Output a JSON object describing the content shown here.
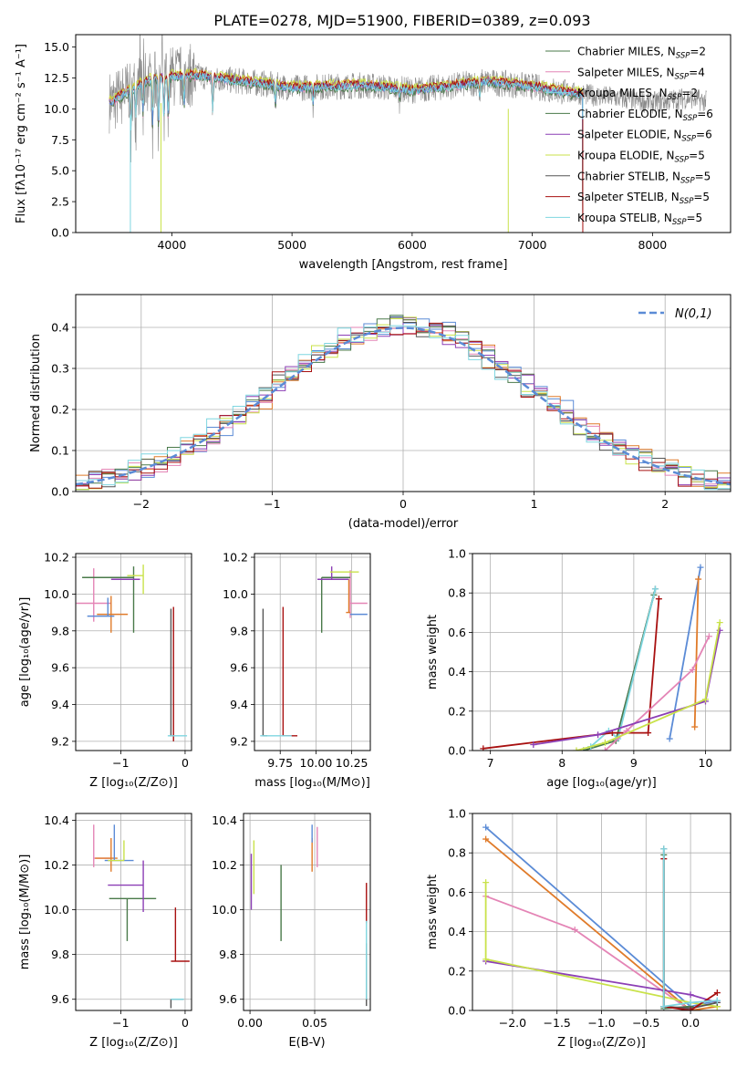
{
  "figure_title": "PLATE=0278, MJD=51900, FIBERID=0389, z=0.093",
  "palette": {
    "blue": "#5b8bd6",
    "orange": "#e07b2a",
    "pink": "#e485b6",
    "darkgreen": "#4a7a4a",
    "purple": "#8c3fb5",
    "yellowgreen": "#c9e24a",
    "darkgray": "#555555",
    "darkred": "#a81010",
    "cyan": "#7fd6e0",
    "spectrum_gray": "#8a8a8a",
    "grid": "#b0b0b0"
  },
  "chart_data": [
    {
      "type": "line",
      "title": "PLATE=0278, MJD=51900, FIBERID=0389, z=0.093",
      "xlabel": "wavelength [Angstrom, rest frame]",
      "ylabel": "Flux [fλ10⁻¹⁷ erg cm⁻² s⁻¹ A⁻¹]",
      "xlim": [
        3200,
        8650
      ],
      "ylim": [
        0,
        16
      ],
      "xticks": [
        "4000",
        "5000",
        "6000",
        "7000",
        "8000"
      ],
      "yticks": [
        "0.0",
        "2.5",
        "5.0",
        "7.5",
        "10.0",
        "12.5",
        "15.0"
      ],
      "grid": false,
      "legend_position": "top-right",
      "legend": [
        {
          "label": "Chabrier MILES, N_SSP=2",
          "color": "darkgreen"
        },
        {
          "label": "Salpeter MILES, N_SSP=4",
          "color": "pink"
        },
        {
          "label": "Kroupa MILES, N_SSP=2",
          "color": "cyan"
        },
        {
          "label": "Chabrier ELODIE, N_SSP=6",
          "color": "darkgreen"
        },
        {
          "label": "Salpeter ELODIE, N_SSP=6",
          "color": "purple"
        },
        {
          "label": "Kroupa ELODIE, N_SSP=5",
          "color": "yellowgreen"
        },
        {
          "label": "Chabrier STELIB, N_SSP=5",
          "color": "darkgray"
        },
        {
          "label": "Salpeter STELIB, N_SSP=5",
          "color": "darkred"
        },
        {
          "label": "Kroupa STELIB, N_SSP=5",
          "color": "cyan"
        }
      ],
      "continuum": {
        "x": [
          3500,
          3600,
          3700,
          3800,
          4000,
          4200,
          4500,
          4800,
          5000,
          5300,
          5600,
          6000,
          6300,
          6600,
          7000,
          7300,
          7600,
          8000,
          8300,
          8450
        ],
        "y": [
          10.5,
          11.2,
          11.8,
          12.3,
          12.6,
          12.7,
          12.3,
          12.0,
          11.7,
          11.8,
          11.9,
          11.5,
          11.8,
          12.2,
          11.8,
          11.3,
          11.0,
          10.5,
          10.9,
          10.6
        ]
      },
      "data_x_range": [
        3480,
        8450
      ],
      "model_x_range": [
        3480,
        7420
      ],
      "stelib_x_range": [
        3500,
        7420
      ]
    },
    {
      "type": "step",
      "xlabel": "(data-model)/error",
      "ylabel": "Normed distribution",
      "xlim": [
        -2.5,
        2.5
      ],
      "ylim": [
        0,
        0.48
      ],
      "xticks": [
        "−2",
        "−1",
        "0",
        "1",
        "2"
      ],
      "yticks": [
        "0.0",
        "0.1",
        "0.2",
        "0.3",
        "0.4"
      ],
      "grid": true,
      "legend_position": "top-right",
      "legend_label": "N(0,1)",
      "reference_curve": "normal(0,1)",
      "bin_width": 0.1,
      "bins_start": -2.5,
      "series_colors": [
        "blue",
        "orange",
        "pink",
        "darkgreen",
        "purple",
        "yellowgreen",
        "darkgray",
        "darkred",
        "cyan"
      ]
    },
    {
      "type": "errorbar",
      "xlabel": "Z [log₁₀(Z/Z⊙)]",
      "ylabel": "age  [log₁₀(age/yr)]",
      "xlim": [
        -1.7,
        0.1
      ],
      "ylim": [
        9.15,
        10.22
      ],
      "xticks": [
        "−1",
        "0"
      ],
      "yticks": [
        "9.2",
        "9.4",
        "9.6",
        "9.8",
        "10.0",
        "10.2"
      ],
      "grid": true,
      "points": [
        {
          "color": "pink",
          "x": -1.42,
          "xerr": [
            0.27,
            0.27
          ],
          "y": 9.95,
          "yerr": [
            0.1,
            0.19
          ]
        },
        {
          "color": "orange",
          "x": -1.15,
          "xerr": [
            0.22,
            0.26
          ],
          "y": 9.89,
          "yerr": [
            0.1,
            0.1
          ]
        },
        {
          "color": "blue",
          "x": -1.2,
          "xerr": [
            0.32,
            0.1
          ],
          "y": 9.88,
          "yerr": [
            0.0,
            0.1
          ]
        },
        {
          "color": "darkgreen",
          "x": -0.8,
          "xerr": [
            0.8,
            0.0
          ],
          "y": 10.09,
          "yerr": [
            0.3,
            0.06
          ]
        },
        {
          "color": "purple",
          "x": -0.85,
          "xerr": [
            0.3,
            0.15
          ],
          "y": 10.08,
          "yerr": [
            0.0,
            0.0
          ]
        },
        {
          "color": "yellowgreen",
          "x": -0.65,
          "xerr": [
            0.25,
            0.0
          ],
          "y": 10.1,
          "yerr": [
            0.1,
            0.06
          ]
        },
        {
          "color": "darkgray",
          "x": -0.22,
          "xerr": [
            0.02,
            0.02
          ],
          "y": 9.23,
          "yerr": [
            0.0,
            0.69
          ]
        },
        {
          "color": "darkred",
          "x": -0.18,
          "xerr": [
            0.0,
            0.0
          ],
          "y": 9.23,
          "yerr": [
            0.03,
            0.7
          ]
        },
        {
          "color": "cyan",
          "x": -0.22,
          "xerr": [
            0.05,
            0.25
          ],
          "y": 9.23,
          "yerr": [
            0.0,
            0.0
          ]
        }
      ]
    },
    {
      "type": "errorbar",
      "xlabel": "mass [log₁₀(M/M⊙)]",
      "ylabel": "",
      "xlim": [
        9.57,
        10.38
      ],
      "ylim": [
        9.15,
        10.22
      ],
      "xticks": [
        "9.75",
        "10.00",
        "10.25"
      ],
      "yticks": [
        "9.2",
        "9.4",
        "9.6",
        "9.8",
        "10.0",
        "10.2"
      ],
      "grid": true,
      "points": [
        {
          "color": "pink",
          "x": 10.24,
          "xerr": [
            0.0,
            0.12
          ],
          "y": 9.95,
          "yerr": [
            0.08,
            0.18
          ]
        },
        {
          "color": "orange",
          "x": 10.23,
          "xerr": [
            0.02,
            0.01
          ],
          "y": 9.9,
          "yerr": [
            0.0,
            0.18
          ]
        },
        {
          "color": "blue",
          "x": 10.24,
          "xerr": [
            0.0,
            0.12
          ],
          "y": 9.89,
          "yerr": [
            0.0,
            0.0
          ]
        },
        {
          "color": "darkgreen",
          "x": 10.04,
          "xerr": [
            0.0,
            0.2
          ],
          "y": 10.09,
          "yerr": [
            0.3,
            0.0
          ]
        },
        {
          "color": "purple",
          "x": 10.11,
          "xerr": [
            0.1,
            0.12
          ],
          "y": 10.08,
          "yerr": [
            0.0,
            0.07
          ]
        },
        {
          "color": "yellowgreen",
          "x": 10.2,
          "xerr": [
            0.1,
            0.1
          ],
          "y": 10.12,
          "yerr": [
            0.0,
            0.0
          ]
        },
        {
          "color": "darkgray",
          "x": 9.63,
          "xerr": [
            0.0,
            0.03
          ],
          "y": 9.23,
          "yerr": [
            0.0,
            0.69
          ]
        },
        {
          "color": "darkred",
          "x": 9.77,
          "xerr": [
            0.0,
            0.1
          ],
          "y": 9.23,
          "yerr": [
            0.0,
            0.7
          ]
        },
        {
          "color": "cyan",
          "x": 9.65,
          "xerr": [
            0.04,
            0.18
          ],
          "y": 9.23,
          "yerr": [
            0.0,
            0.0
          ]
        }
      ]
    },
    {
      "type": "line",
      "xlabel": "age  [log₁₀(age/yr)]",
      "ylabel": "mass weight",
      "xlim": [
        6.75,
        10.35
      ],
      "ylim": [
        0,
        1
      ],
      "xticks": [
        "7",
        "8",
        "9",
        "10"
      ],
      "yticks": [
        "0.0",
        "0.2",
        "0.4",
        "0.6",
        "0.8",
        "1.0"
      ],
      "grid": true,
      "series": [
        {
          "color": "darkgray",
          "x": [
            8.75,
            9.3
          ],
          "y": [
            0.05,
            0.82
          ]
        },
        {
          "color": "darkgreen",
          "x": [
            8.3,
            8.75,
            9.28
          ],
          "y": [
            0.0,
            0.05,
            0.79
          ]
        },
        {
          "color": "cyan",
          "x": [
            8.4,
            8.65,
            8.78,
            9.3
          ],
          "y": [
            0.02,
            0.1,
            0.06,
            0.82
          ]
        },
        {
          "color": "darkred",
          "x": [
            6.9,
            8.7,
            9.2,
            9.35
          ],
          "y": [
            0.01,
            0.09,
            0.09,
            0.77
          ]
        },
        {
          "color": "blue",
          "x": [
            9.5,
            9.93
          ],
          "y": [
            0.06,
            0.93
          ]
        },
        {
          "color": "orange",
          "x": [
            9.85,
            9.9
          ],
          "y": [
            0.12,
            0.87
          ]
        },
        {
          "color": "pink",
          "x": [
            8.6,
            8.9,
            9.82,
            10.05
          ],
          "y": [
            0.0,
            0.1,
            0.41,
            0.58
          ]
        },
        {
          "color": "purple",
          "x": [
            7.6,
            8.5,
            10.0,
            10.2
          ],
          "y": [
            0.03,
            0.08,
            0.25,
            0.61
          ]
        },
        {
          "color": "yellowgreen",
          "x": [
            8.2,
            8.6,
            10.0,
            10.2
          ],
          "y": [
            0.0,
            0.04,
            0.26,
            0.65
          ]
        }
      ]
    },
    {
      "type": "errorbar",
      "xlabel": "Z [log₁₀(Z/Z⊙)]",
      "ylabel": "mass [log₁₀(M/M⊙)]",
      "xlim": [
        -1.7,
        0.1
      ],
      "ylim": [
        9.55,
        10.43
      ],
      "xticks": [
        "−1",
        "0"
      ],
      "yticks": [
        "9.6",
        "9.8",
        "10.0",
        "10.2",
        "10.4"
      ],
      "grid": true,
      "points": [
        {
          "color": "pink",
          "x": -1.42,
          "xerr": [
            0.0,
            0.28
          ],
          "y": 10.23,
          "yerr": [
            0.04,
            0.15
          ]
        },
        {
          "color": "orange",
          "x": -1.15,
          "xerr": [
            0.25,
            0.1
          ],
          "y": 10.23,
          "yerr": [
            0.06,
            0.09
          ]
        },
        {
          "color": "blue",
          "x": -1.1,
          "xerr": [
            0.15,
            0.3
          ],
          "y": 10.22,
          "yerr": [
            0.0,
            0.16
          ]
        },
        {
          "color": "darkgreen",
          "x": -0.9,
          "xerr": [
            0.28,
            0.45
          ],
          "y": 10.05,
          "yerr": [
            0.19,
            0.0
          ]
        },
        {
          "color": "purple",
          "x": -0.65,
          "xerr": [
            0.55,
            0.0
          ],
          "y": 10.11,
          "yerr": [
            0.12,
            0.11
          ]
        },
        {
          "color": "yellowgreen",
          "x": -0.95,
          "xerr": [
            0.25,
            0.0
          ],
          "y": 10.22,
          "yerr": [
            0.0,
            0.09
          ]
        },
        {
          "color": "darkgray",
          "x": -0.22,
          "xerr": [
            0.0,
            0.2
          ],
          "y": 9.6,
          "yerr": [
            0.04,
            0.0
          ]
        },
        {
          "color": "darkred",
          "x": -0.15,
          "xerr": [
            0.07,
            0.22
          ],
          "y": 9.77,
          "yerr": [
            0.0,
            0.24
          ]
        },
        {
          "color": "cyan",
          "x": -0.22,
          "xerr": [
            0.0,
            0.2
          ],
          "y": 9.6,
          "yerr": [
            0.0,
            0.0
          ]
        }
      ]
    },
    {
      "type": "errorbar",
      "xlabel": "E(B-V)",
      "ylabel": "",
      "xlim": [
        -0.005,
        0.093
      ],
      "ylim": [
        9.55,
        10.43
      ],
      "xticks": [
        "0.00",
        "0.05"
      ],
      "yticks": [
        "9.6",
        "9.8",
        "10.0",
        "10.2",
        "10.4"
      ],
      "grid": true,
      "points": [
        {
          "color": "yellowgreen",
          "x": 0.003,
          "xerr": [
            0,
            0
          ],
          "y": 10.2,
          "yerr": [
            0.13,
            0.11
          ]
        },
        {
          "color": "purple",
          "x": 0.001,
          "xerr": [
            0,
            0
          ],
          "y": 10.1,
          "yerr": [
            0.1,
            0.15
          ]
        },
        {
          "color": "darkgreen",
          "x": 0.024,
          "xerr": [
            0,
            0
          ],
          "y": 10.05,
          "yerr": [
            0.19,
            0.15
          ]
        },
        {
          "color": "orange",
          "x": 0.048,
          "xerr": [
            0,
            0
          ],
          "y": 10.23,
          "yerr": [
            0.06,
            0.09
          ]
        },
        {
          "color": "blue",
          "x": 0.048,
          "xerr": [
            0,
            0
          ],
          "y": 10.3,
          "yerr": [
            0.0,
            0.08
          ]
        },
        {
          "color": "pink",
          "x": 0.052,
          "xerr": [
            0,
            0
          ],
          "y": 10.25,
          "yerr": [
            0.06,
            0.12
          ]
        },
        {
          "color": "darkred",
          "x": 0.09,
          "xerr": [
            0,
            0
          ],
          "y": 10.03,
          "yerr": [
            0.09,
            0.09
          ]
        },
        {
          "color": "darkgray",
          "x": 0.09,
          "xerr": [
            0,
            0
          ],
          "y": 9.75,
          "yerr": [
            0.18,
            0.1
          ]
        },
        {
          "color": "cyan",
          "x": 0.09,
          "xerr": [
            0,
            0
          ],
          "y": 9.75,
          "yerr": [
            0.15,
            0.2
          ]
        }
      ]
    },
    {
      "type": "line",
      "xlabel": "Z [log₁₀(Z/Z⊙)]",
      "ylabel": "mass weight",
      "xlim": [
        -2.45,
        0.45
      ],
      "ylim": [
        0,
        1
      ],
      "xticks": [
        "−2.0",
        "−1.5",
        "−1.0",
        "−0.5",
        "0.0"
      ],
      "yticks": [
        "0.0",
        "0.2",
        "0.4",
        "0.6",
        "0.8",
        "1.0"
      ],
      "grid": true,
      "series": [
        {
          "color": "blue",
          "x": [
            -2.3,
            0.0,
            0.3
          ],
          "y": [
            0.93,
            0.02,
            0.05
          ]
        },
        {
          "color": "orange",
          "x": [
            -2.3,
            0.0,
            0.3
          ],
          "y": [
            0.87,
            0.0,
            0.02
          ]
        },
        {
          "color": "pink",
          "x": [
            -2.3,
            -1.3,
            0.0
          ],
          "y": [
            0.58,
            0.41,
            0.0
          ]
        },
        {
          "color": "purple",
          "x": [
            -2.3,
            0.0,
            0.3
          ],
          "y": [
            0.25,
            0.08,
            0.04
          ]
        },
        {
          "color": "yellowgreen",
          "x": [
            -2.3,
            -2.3,
            0.0,
            0.3
          ],
          "y": [
            0.65,
            0.26,
            0.04,
            0.02
          ]
        },
        {
          "color": "darkgreen",
          "x": [
            -0.3,
            -0.3,
            0.0
          ],
          "y": [
            0.79,
            0.01,
            0.02
          ]
        },
        {
          "color": "darkgray",
          "x": [
            -0.3,
            -0.3,
            0.0,
            0.3
          ],
          "y": [
            0.82,
            0.02,
            0.01,
            0.04
          ]
        },
        {
          "color": "darkred",
          "x": [
            -0.3,
            -0.3,
            0.0,
            0.3
          ],
          "y": [
            0.77,
            0.02,
            0.0,
            0.09
          ]
        },
        {
          "color": "cyan",
          "x": [
            -0.3,
            -0.3,
            0.0,
            0.3
          ],
          "y": [
            0.82,
            0.02,
            0.04,
            0.05
          ]
        }
      ]
    }
  ]
}
